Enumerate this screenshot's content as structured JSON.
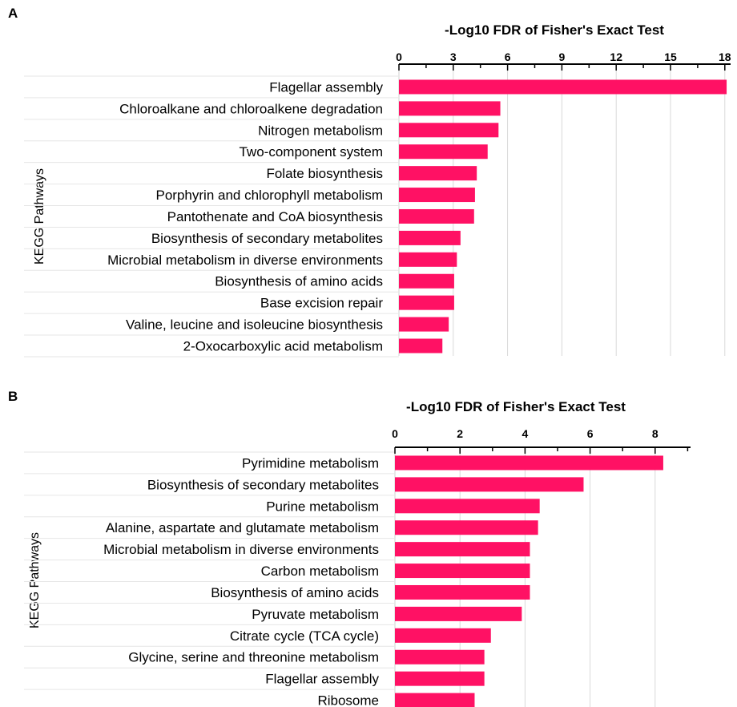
{
  "chart_data": [
    {
      "panel": "A",
      "type": "bar",
      "orientation": "horizontal",
      "title": "-Log10 FDR of Fisher's Exact Test",
      "ylabel": "KEGG Pathways",
      "xlim": [
        0,
        18
      ],
      "xticks": [
        0,
        3,
        6,
        9,
        12,
        15,
        18
      ],
      "bar_color": "#ff1164",
      "grid": "vertical",
      "categories": [
        "Flagellar assembly",
        "Chloroalkane and chloroalkene degradation",
        "Nitrogen metabolism",
        "Two-component system",
        "Folate biosynthesis",
        "Porphyrin and chlorophyll metabolism",
        "Pantothenate and CoA biosynthesis",
        "Biosynthesis of secondary metabolites",
        "Microbial metabolism in diverse environments",
        "Biosynthesis of amino acids",
        "Base excision repair",
        "Valine, leucine and isoleucine biosynthesis",
        "2-Oxocarboxylic acid metabolism"
      ],
      "values": [
        18.1,
        5.6,
        5.5,
        4.9,
        4.3,
        4.2,
        4.15,
        3.4,
        3.2,
        3.05,
        3.05,
        2.75,
        2.4
      ]
    },
    {
      "panel": "B",
      "type": "bar",
      "orientation": "horizontal",
      "title": "-Log10 FDR of Fisher's Exact Test",
      "ylabel": "KEGG Pathways",
      "xlim": [
        0,
        9
      ],
      "xticks": [
        0,
        2,
        4,
        6,
        8
      ],
      "bar_color": "#ff1164",
      "grid": "vertical",
      "categories": [
        "Pyrimidine metabolism",
        "Biosynthesis of secondary metabolites",
        "Purine metabolism",
        "Alanine, aspartate and glutamate metabolism",
        "Microbial metabolism in diverse environments",
        "Carbon metabolism",
        "Biosynthesis of amino acids",
        "Pyruvate metabolism",
        "Citrate cycle (TCA cycle)",
        "Glycine, serine and threonine metabolism",
        "Flagellar assembly",
        "Ribosome"
      ],
      "values": [
        8.25,
        5.8,
        4.45,
        4.4,
        4.15,
        4.15,
        4.15,
        3.9,
        2.95,
        2.75,
        2.75,
        2.45
      ]
    }
  ]
}
